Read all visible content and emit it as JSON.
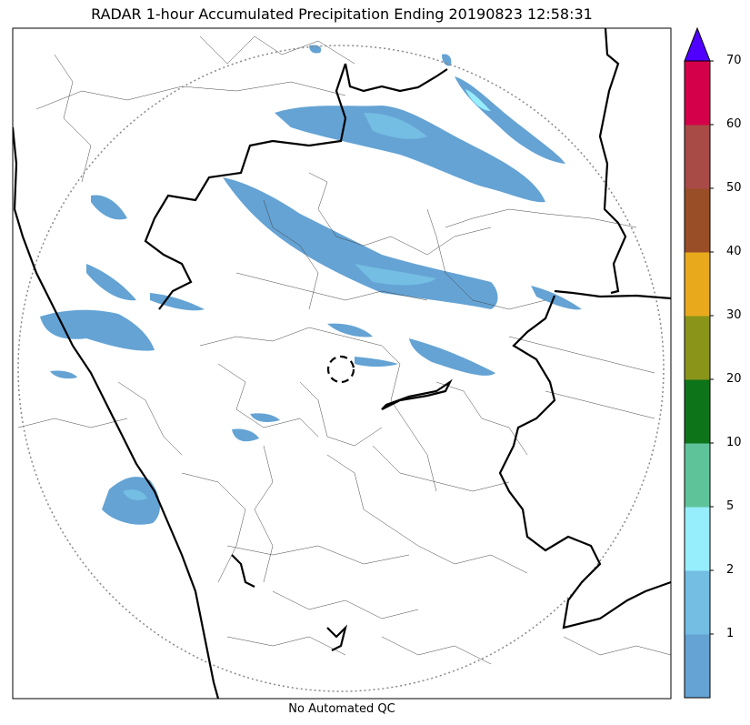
{
  "title": "RADAR 1-hour Accumulated Precipitation Ending 20190823 12:58:31",
  "footer_note": "No Automated QC",
  "colorbar": {
    "labels": [
      "1",
      "2",
      "5",
      "10",
      "20",
      "30",
      "40",
      "50",
      "60",
      "70"
    ],
    "colors": [
      "#64a3d4",
      "#74bde3",
      "#96edfc",
      "#5fc39a",
      "#0e7419",
      "#8a9419",
      "#e8aa1c",
      "#9a4e27",
      "#a84b47",
      "#d4004a"
    ],
    "extend_color": "#5000ff"
  },
  "map": {
    "features": [
      "state-borders",
      "district-borders",
      "coastline",
      "radar-range-ring",
      "radar-site-marker"
    ],
    "precip_colors": {
      "light": "#64a3d4",
      "moderate": "#74bde3",
      "heavy": "#96edfc"
    }
  }
}
